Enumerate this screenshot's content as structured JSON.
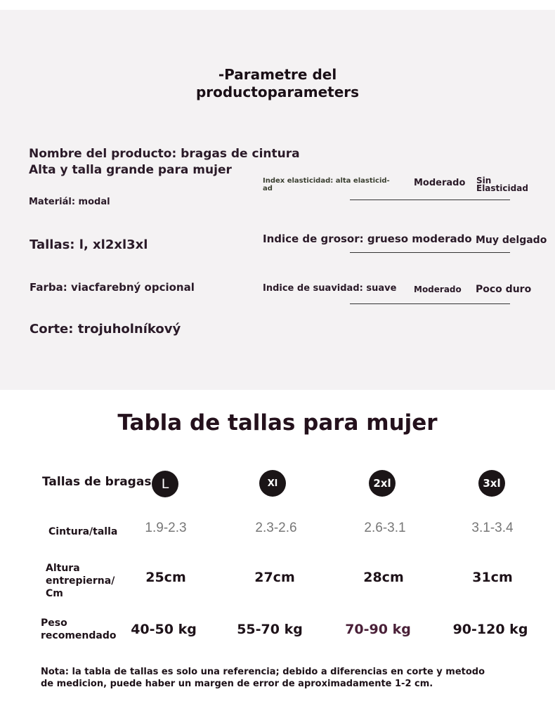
{
  "header": {
    "title_line1": "-Parametre del",
    "title_line2": "productoparameters"
  },
  "params": {
    "name_line1": "Nombre del producto: bragas de cintura",
    "name_line2": "Alta y talla grande para mujer",
    "material": "Materiál: modal",
    "sizes": "Tallas: l, xl2xl3xl",
    "color": "Farba: viacfarebný opcional",
    "cut": "Corte: trojuholníkový"
  },
  "indices": [
    {
      "label_line1": "Index elasticidad: alta elasticid-",
      "label_line2": "ad",
      "mid": "Moderado",
      "right_line1": "Sin",
      "right_line2": "Elasticidad"
    },
    {
      "label": "Indice de grosor: grueso moderado",
      "right": "Muy delgado"
    },
    {
      "label": "Indice de suavidad: suave",
      "mid": "Moderado",
      "right": "Poco duro"
    }
  ],
  "size_table": {
    "title": "Tabla de tallas para mujer",
    "header_label": "Tallas de bragas",
    "sizes": [
      "L",
      "Xl",
      "2xl",
      "3xl"
    ],
    "rows": [
      {
        "label": "Cintura/talla",
        "values": [
          "1.9-2.3",
          "2.3-2.6",
          "2.6-3.1",
          "3.1-3.4"
        ]
      },
      {
        "label_lines": [
          "Altura",
          "entrepierna/",
          "Cm"
        ],
        "values": [
          "25cm",
          "27cm",
          "28cm",
          "31cm"
        ]
      },
      {
        "label_lines": [
          "Peso",
          "recomendado"
        ],
        "values": [
          "40-50 kg",
          "55-70 kg",
          "70-90 kg",
          "90-120 kg"
        ]
      }
    ]
  },
  "note_line1": "Nota: la tabla de tallas es solo una referencia; debido a diferencias en corte y metodo",
  "note_line2": "de medicion, puede haber un margen de error de aproximadamente 1-2 cm."
}
